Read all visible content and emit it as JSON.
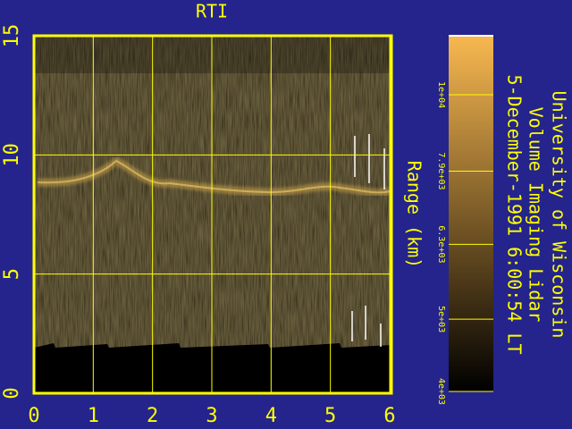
{
  "chart_data": {
    "type": "image",
    "title": "RTI",
    "ylabel": "Range (km)",
    "annotations": [
      "University of Wisconsin",
      "Volume Imaging Lidar",
      "5-December-1991  6:00:54 LT"
    ],
    "xlim": [
      0,
      6
    ],
    "xticks": [
      0,
      1,
      2,
      3,
      4,
      5,
      6
    ],
    "ylim": [
      0,
      15
    ],
    "yticks": [
      0,
      5,
      10,
      15
    ],
    "grid": true,
    "colorbar": {
      "scale": "log",
      "clim": [
        4000,
        12000
      ],
      "colors": [
        "#000000",
        "#f8b850"
      ],
      "ticks": [
        {
          "value": 10000,
          "label": "1e+04"
        },
        {
          "value": 7900,
          "label": "7.9e+03"
        },
        {
          "value": 6300,
          "label": "6.3e+03"
        },
        {
          "value": 5000,
          "label": "5e+03"
        },
        {
          "value": 4000,
          "label": "4e+03"
        }
      ]
    }
  }
}
